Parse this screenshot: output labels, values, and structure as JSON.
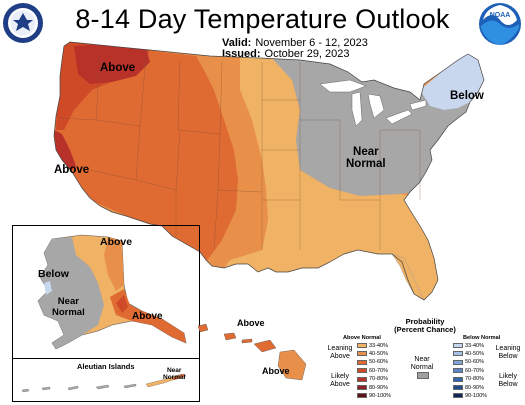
{
  "title": "8-14 Day Temperature Outlook",
  "valid_label": "Valid:",
  "valid_value": "November 6 - 12, 2023",
  "issued_label": "Issued:",
  "issued_value": "October 29, 2023",
  "map_labels": {
    "above_nw": "Above",
    "above_ca": "Above",
    "near_normal_line1": "Near",
    "near_normal_line2": "Normal",
    "below_ne": "Below",
    "ak_above_n": "Above",
    "ak_below": "Below",
    "ak_near_line1": "Near",
    "ak_near_line2": "Normal",
    "ak_above_se": "Above",
    "hi_above_1": "Above",
    "hi_above_2": "Above",
    "aleutian_title": "Aleutian Islands",
    "aleutian_near_line1": "Near",
    "aleutian_near_line2": "Normal"
  },
  "legend": {
    "title_line1": "Probability",
    "title_line2": "(Percent Chance)",
    "above_header": "Above Normal",
    "below_header": "Below Normal",
    "leaning_above_1": "Leaning",
    "leaning_above_2": "Above",
    "likely_above_1": "Likely",
    "likely_above_2": "Above",
    "near_1": "Near",
    "near_2": "Normal",
    "leaning_below_1": "Leaning",
    "leaning_below_2": "Below",
    "likely_below_1": "Likely",
    "likely_below_2": "Below",
    "above_bins": [
      "33-40%",
      "40-50%",
      "50-60%",
      "60-70%",
      "70-80%",
      "80-90%",
      "90-100%"
    ],
    "below_bins": [
      "33-40%",
      "40-50%",
      "50-60%",
      "60-70%",
      "70-80%",
      "80-90%",
      "90-100%"
    ],
    "above_colors": [
      "#f2b266",
      "#e8904a",
      "#df6b33",
      "#cf4a26",
      "#b8322a",
      "#8e1f26",
      "#5e1218"
    ],
    "below_colors": [
      "#c8d7ee",
      "#a6c1e6",
      "#7fa6d9",
      "#5a86c7",
      "#3466b0",
      "#1f4a8f",
      "#12255a"
    ],
    "near_color": "#a0a0a0"
  },
  "colors": {
    "above_33_40": "#f0b264",
    "above_40_50": "#e8904a",
    "above_50_60": "#df6b33",
    "above_60_70": "#cf4a26",
    "above_70_80": "#b8322a",
    "near_normal": "#a7a7a7",
    "below_33_40": "#c8d7ee"
  }
}
